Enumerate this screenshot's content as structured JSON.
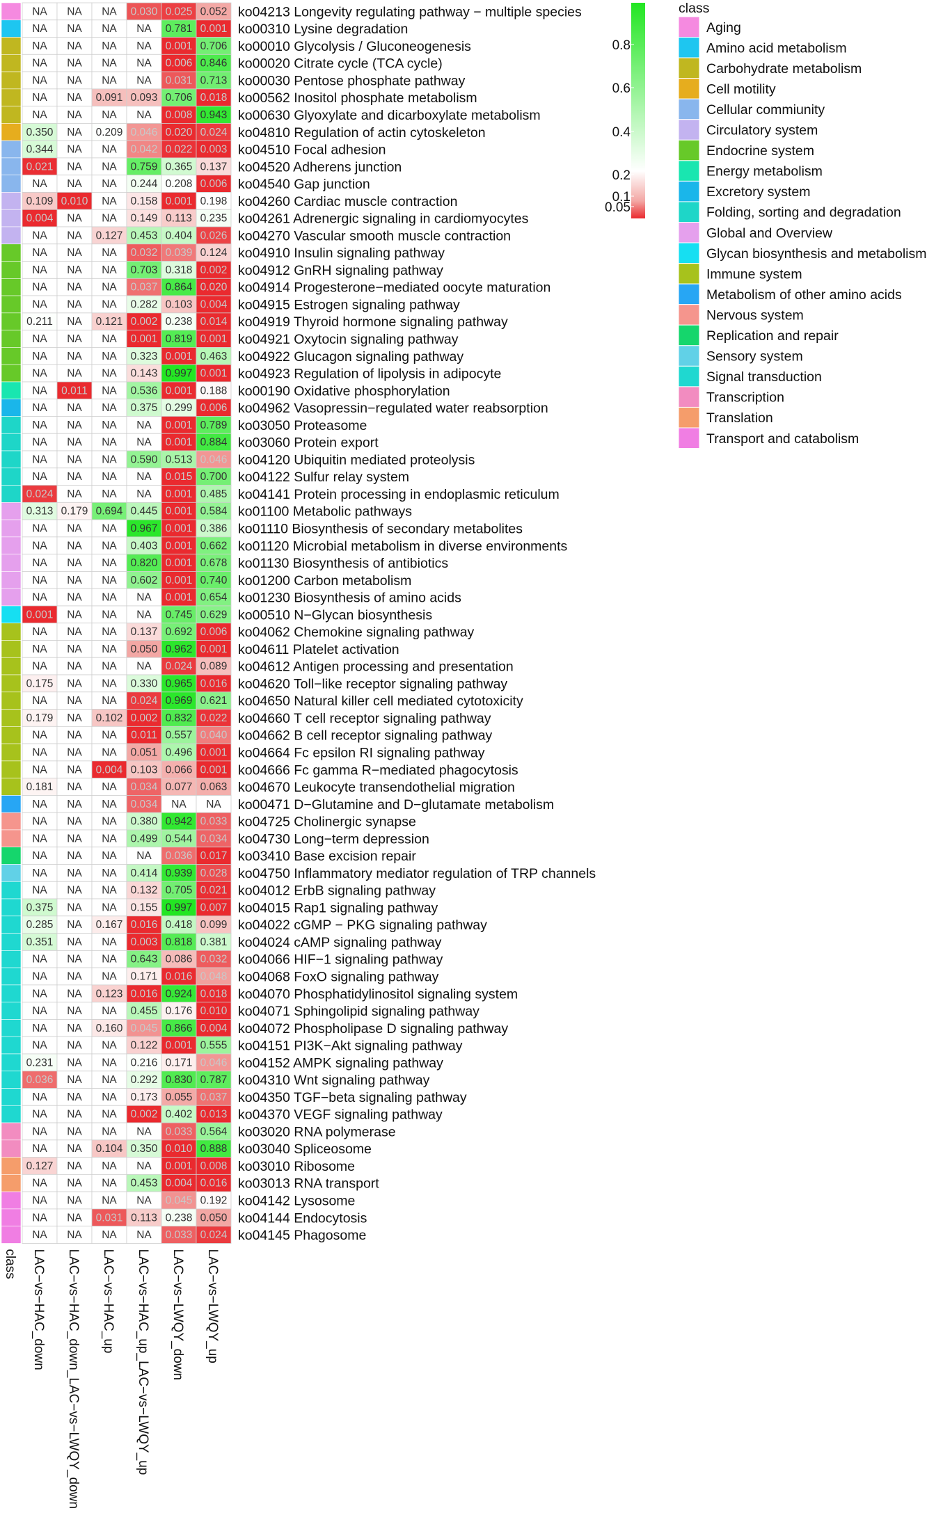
{
  "chart_data": {
    "type": "heatmap",
    "columns": [
      "LAC−vs−HAC_down",
      "LAC−vs−HAC_down_LAC−vs−LWQY_down",
      "LAC−vs−HAC_up",
      "LAC−vs−HAC_up_LAC−vs−LWQY_up",
      "LAC−vs−LWQY_down",
      "LAC−vs−LWQY_up"
    ],
    "class_axis_label": "class",
    "legend_title": "class",
    "colorbar": {
      "ticks": [
        "0.8",
        "0.6",
        "0.4",
        "0.2",
        "0.1",
        "0.05"
      ],
      "low_color": "#e8242a",
      "high_color": "#22e622"
    },
    "classes": [
      {
        "name": "Aging",
        "color": "#f58ae0"
      },
      {
        "name": "Amino acid metabolism",
        "color": "#1ec6f0"
      },
      {
        "name": "Carbohydrate metabolism",
        "color": "#c0b720"
      },
      {
        "name": "Cell motility",
        "color": "#e6ad1e"
      },
      {
        "name": "Cellular commiunity",
        "color": "#89b6ed"
      },
      {
        "name": "Circulatory system",
        "color": "#c3b3f0"
      },
      {
        "name": "Endocrine system",
        "color": "#67c929"
      },
      {
        "name": "Energy metabolism",
        "color": "#19e6b0"
      },
      {
        "name": "Excretory system",
        "color": "#1ab6ea"
      },
      {
        "name": "Folding, sorting and degradation",
        "color": "#1ed6c8"
      },
      {
        "name": "Global and Overview",
        "color": "#e5a0ed"
      },
      {
        "name": "Glycan biosynthesis and metabolism",
        "color": "#16dff2"
      },
      {
        "name": "Immune system",
        "color": "#a7c21c"
      },
      {
        "name": "Metabolism of other amino acids",
        "color": "#27a6f4"
      },
      {
        "name": "Nervous system",
        "color": "#f5958d"
      },
      {
        "name": "Replication and repair",
        "color": "#15d66c"
      },
      {
        "name": "Sensory system",
        "color": "#61d1e7"
      },
      {
        "name": "Signal transduction",
        "color": "#1fd8d0"
      },
      {
        "name": "Transcription",
        "color": "#f28cc0"
      },
      {
        "name": "Translation",
        "color": "#f59d6b"
      },
      {
        "name": "Transport and catabolism",
        "color": "#f07ee3"
      }
    ],
    "rows": [
      {
        "label": "ko04213 Longevity regulating pathway − multiple species",
        "class": 0,
        "values": [
          "NA",
          "NA",
          "NA",
          "0.030",
          "0.025",
          "0.052"
        ]
      },
      {
        "label": "ko00310 Lysine degradation",
        "class": 1,
        "values": [
          "NA",
          "NA",
          "NA",
          "NA",
          "0.781",
          "0.001"
        ]
      },
      {
        "label": "ko00010 Glycolysis / Gluconeogenesis",
        "class": 2,
        "values": [
          "NA",
          "NA",
          "NA",
          "NA",
          "0.001",
          "0.706"
        ]
      },
      {
        "label": "ko00020 Citrate cycle (TCA cycle)",
        "class": 2,
        "values": [
          "NA",
          "NA",
          "NA",
          "NA",
          "0.006",
          "0.846"
        ]
      },
      {
        "label": "ko00030 Pentose phosphate pathway",
        "class": 2,
        "values": [
          "NA",
          "NA",
          "NA",
          "NA",
          "0.031",
          "0.713"
        ]
      },
      {
        "label": "ko00562 Inositol phosphate metabolism",
        "class": 2,
        "values": [
          "NA",
          "NA",
          "0.091",
          "0.093",
          "0.706",
          "0.018"
        ]
      },
      {
        "label": "ko00630 Glyoxylate and dicarboxylate metabolism",
        "class": 2,
        "values": [
          "NA",
          "NA",
          "NA",
          "NA",
          "0.008",
          "0.943"
        ]
      },
      {
        "label": "ko04810 Regulation of actin cytoskeleton",
        "class": 3,
        "values": [
          "0.350",
          "NA",
          "0.209",
          "0.046",
          "0.020",
          "0.024"
        ]
      },
      {
        "label": "ko04510 Focal adhesion",
        "class": 4,
        "values": [
          "0.344",
          "NA",
          "NA",
          "0.042",
          "0.022",
          "0.003"
        ]
      },
      {
        "label": "ko04520 Adherens junction",
        "class": 4,
        "values": [
          "0.021",
          "NA",
          "NA",
          "0.759",
          "0.365",
          "0.137"
        ]
      },
      {
        "label": "ko04540 Gap junction",
        "class": 4,
        "values": [
          "NA",
          "NA",
          "NA",
          "0.244",
          "0.208",
          "0.006"
        ]
      },
      {
        "label": "ko04260 Cardiac muscle contraction",
        "class": 5,
        "values": [
          "0.109",
          "0.010",
          "NA",
          "0.158",
          "0.001",
          "0.198"
        ]
      },
      {
        "label": "ko04261 Adrenergic signaling in cardiomyocytes",
        "class": 5,
        "values": [
          "0.004",
          "NA",
          "NA",
          "0.149",
          "0.113",
          "0.235"
        ]
      },
      {
        "label": "ko04270 Vascular smooth muscle contraction",
        "class": 5,
        "values": [
          "NA",
          "NA",
          "0.127",
          "0.453",
          "0.404",
          "0.026"
        ]
      },
      {
        "label": "ko04910 Insulin signaling pathway",
        "class": 6,
        "values": [
          "NA",
          "NA",
          "NA",
          "0.032",
          "0.039",
          "0.124"
        ]
      },
      {
        "label": "ko04912 GnRH signaling pathway",
        "class": 6,
        "values": [
          "NA",
          "NA",
          "NA",
          "0.703",
          "0.318",
          "0.002"
        ]
      },
      {
        "label": "ko04914 Progesterone−mediated oocyte maturation",
        "class": 6,
        "values": [
          "NA",
          "NA",
          "NA",
          "0.037",
          "0.864",
          "0.020"
        ]
      },
      {
        "label": "ko04915 Estrogen signaling pathway",
        "class": 6,
        "values": [
          "NA",
          "NA",
          "NA",
          "0.282",
          "0.103",
          "0.004"
        ]
      },
      {
        "label": "ko04919 Thyroid hormone signaling pathway",
        "class": 6,
        "values": [
          "0.211",
          "NA",
          "0.121",
          "0.002",
          "0.238",
          "0.014"
        ]
      },
      {
        "label": "ko04921 Oxytocin signaling pathway",
        "class": 6,
        "values": [
          "NA",
          "NA",
          "NA",
          "0.001",
          "0.819",
          "0.001"
        ]
      },
      {
        "label": "ko04922 Glucagon signaling pathway",
        "class": 6,
        "values": [
          "NA",
          "NA",
          "NA",
          "0.323",
          "0.001",
          "0.463"
        ]
      },
      {
        "label": "ko04923 Regulation of lipolysis in adipocyte",
        "class": 6,
        "values": [
          "NA",
          "NA",
          "NA",
          "0.143",
          "0.997",
          "0.001"
        ]
      },
      {
        "label": "ko00190 Oxidative phosphorylation",
        "class": 7,
        "values": [
          "NA",
          "0.011",
          "NA",
          "0.536",
          "0.001",
          "0.188"
        ]
      },
      {
        "label": "ko04962 Vasopressin−regulated water reabsorption",
        "class": 8,
        "values": [
          "NA",
          "NA",
          "NA",
          "0.375",
          "0.299",
          "0.006"
        ]
      },
      {
        "label": "ko03050 Proteasome",
        "class": 9,
        "values": [
          "NA",
          "NA",
          "NA",
          "NA",
          "0.001",
          "0.789"
        ]
      },
      {
        "label": "ko03060 Protein export",
        "class": 9,
        "values": [
          "NA",
          "NA",
          "NA",
          "NA",
          "0.001",
          "0.884"
        ]
      },
      {
        "label": "ko04120 Ubiquitin mediated proteolysis",
        "class": 9,
        "values": [
          "NA",
          "NA",
          "NA",
          "0.590",
          "0.513",
          "0.046"
        ]
      },
      {
        "label": "ko04122 Sulfur relay system",
        "class": 9,
        "values": [
          "NA",
          "NA",
          "NA",
          "NA",
          "0.015",
          "0.700"
        ]
      },
      {
        "label": "ko04141 Protein processing in endoplasmic reticulum",
        "class": 9,
        "values": [
          "0.024",
          "NA",
          "NA",
          "NA",
          "0.001",
          "0.485"
        ]
      },
      {
        "label": "ko01100 Metabolic pathways",
        "class": 10,
        "values": [
          "0.313",
          "0.179",
          "0.694",
          "0.445",
          "0.001",
          "0.584"
        ]
      },
      {
        "label": "ko01110 Biosynthesis of secondary metabolites",
        "class": 10,
        "values": [
          "NA",
          "NA",
          "NA",
          "0.967",
          "0.001",
          "0.386"
        ]
      },
      {
        "label": "ko01120 Microbial metabolism in diverse environments",
        "class": 10,
        "values": [
          "NA",
          "NA",
          "NA",
          "0.403",
          "0.001",
          "0.662"
        ]
      },
      {
        "label": "ko01130 Biosynthesis of antibiotics",
        "class": 10,
        "values": [
          "NA",
          "NA",
          "NA",
          "0.820",
          "0.001",
          "0.678"
        ]
      },
      {
        "label": "ko01200 Carbon metabolism",
        "class": 10,
        "values": [
          "NA",
          "NA",
          "NA",
          "0.602",
          "0.001",
          "0.740"
        ]
      },
      {
        "label": "ko01230 Biosynthesis of amino acids",
        "class": 10,
        "values": [
          "NA",
          "NA",
          "NA",
          "NA",
          "0.001",
          "0.654"
        ]
      },
      {
        "label": "ko00510 N−Glycan biosynthesis",
        "class": 11,
        "values": [
          "0.001",
          "NA",
          "NA",
          "NA",
          "0.745",
          "0.629"
        ]
      },
      {
        "label": "ko04062 Chemokine signaling pathway",
        "class": 12,
        "values": [
          "NA",
          "NA",
          "NA",
          "0.137",
          "0.692",
          "0.006"
        ]
      },
      {
        "label": "ko04611 Platelet activation",
        "class": 12,
        "values": [
          "NA",
          "NA",
          "NA",
          "0.050",
          "0.962",
          "0.001"
        ]
      },
      {
        "label": "ko04612 Antigen processing and presentation",
        "class": 12,
        "values": [
          "NA",
          "NA",
          "NA",
          "NA",
          "0.024",
          "0.089"
        ]
      },
      {
        "label": "ko04620 Toll−like receptor signaling pathway",
        "class": 12,
        "values": [
          "0.175",
          "NA",
          "NA",
          "0.330",
          "0.965",
          "0.016"
        ]
      },
      {
        "label": "ko04650 Natural killer cell mediated cytotoxicity",
        "class": 12,
        "values": [
          "NA",
          "NA",
          "NA",
          "0.024",
          "0.969",
          "0.621"
        ]
      },
      {
        "label": "ko04660 T cell receptor signaling pathway",
        "class": 12,
        "values": [
          "0.179",
          "NA",
          "0.102",
          "0.002",
          "0.832",
          "0.022"
        ]
      },
      {
        "label": "ko04662 B cell receptor signaling pathway",
        "class": 12,
        "values": [
          "NA",
          "NA",
          "NA",
          "0.011",
          "0.557",
          "0.040"
        ]
      },
      {
        "label": "ko04664 Fc epsilon RI signaling pathway",
        "class": 12,
        "values": [
          "NA",
          "NA",
          "NA",
          "0.051",
          "0.496",
          "0.001"
        ]
      },
      {
        "label": "ko04666 Fc gamma R−mediated phagocytosis",
        "class": 12,
        "values": [
          "NA",
          "NA",
          "0.004",
          "0.103",
          "0.066",
          "0.001"
        ]
      },
      {
        "label": "ko04670 Leukocyte transendothelial migration",
        "class": 12,
        "values": [
          "0.181",
          "NA",
          "NA",
          "0.034",
          "0.077",
          "0.063"
        ]
      },
      {
        "label": "ko00471 D−Glutamine and D−glutamate metabolism",
        "class": 13,
        "values": [
          "NA",
          "NA",
          "NA",
          "0.034",
          "NA",
          "NA"
        ]
      },
      {
        "label": "ko04725 Cholinergic synapse",
        "class": 14,
        "values": [
          "NA",
          "NA",
          "NA",
          "0.380",
          "0.942",
          "0.033"
        ]
      },
      {
        "label": "ko04730 Long−term depression",
        "class": 14,
        "values": [
          "NA",
          "NA",
          "NA",
          "0.499",
          "0.544",
          "0.034"
        ]
      },
      {
        "label": "ko03410 Base excision repair",
        "class": 15,
        "values": [
          "NA",
          "NA",
          "NA",
          "NA",
          "0.036",
          "0.017"
        ]
      },
      {
        "label": "ko04750 Inflammatory mediator regulation of TRP channels",
        "class": 16,
        "values": [
          "NA",
          "NA",
          "NA",
          "0.414",
          "0.939",
          "0.028"
        ]
      },
      {
        "label": "ko04012 ErbB signaling pathway",
        "class": 17,
        "values": [
          "NA",
          "NA",
          "NA",
          "0.132",
          "0.705",
          "0.021"
        ]
      },
      {
        "label": "ko04015 Rap1 signaling pathway",
        "class": 17,
        "values": [
          "0.375",
          "NA",
          "NA",
          "0.155",
          "0.997",
          "0.007"
        ]
      },
      {
        "label": "ko04022 cGMP − PKG signaling pathway",
        "class": 17,
        "values": [
          "0.285",
          "NA",
          "0.167",
          "0.016",
          "0.418",
          "0.099"
        ]
      },
      {
        "label": "ko04024 cAMP signaling pathway",
        "class": 17,
        "values": [
          "0.351",
          "NA",
          "NA",
          "0.003",
          "0.818",
          "0.381"
        ]
      },
      {
        "label": "ko04066 HIF−1 signaling pathway",
        "class": 17,
        "values": [
          "NA",
          "NA",
          "NA",
          "0.643",
          "0.086",
          "0.032"
        ]
      },
      {
        "label": "ko04068 FoxO signaling pathway",
        "class": 17,
        "values": [
          "NA",
          "NA",
          "NA",
          "0.171",
          "0.016",
          "0.048"
        ]
      },
      {
        "label": "ko04070 Phosphatidylinositol signaling system",
        "class": 17,
        "values": [
          "NA",
          "NA",
          "0.123",
          "0.016",
          "0.924",
          "0.018"
        ]
      },
      {
        "label": "ko04071 Sphingolipid signaling pathway",
        "class": 17,
        "values": [
          "NA",
          "NA",
          "NA",
          "0.455",
          "0.176",
          "0.010"
        ]
      },
      {
        "label": "ko04072 Phospholipase D signaling pathway",
        "class": 17,
        "values": [
          "NA",
          "NA",
          "0.160",
          "0.045",
          "0.866",
          "0.004"
        ]
      },
      {
        "label": "ko04151 PI3K−Akt signaling pathway",
        "class": 17,
        "values": [
          "NA",
          "NA",
          "NA",
          "0.122",
          "0.001",
          "0.555"
        ]
      },
      {
        "label": "ko04152 AMPK signaling pathway",
        "class": 17,
        "values": [
          "0.231",
          "NA",
          "NA",
          "0.216",
          "0.171",
          "0.046"
        ]
      },
      {
        "label": "ko04310 Wnt signaling pathway",
        "class": 17,
        "values": [
          "0.036",
          "NA",
          "NA",
          "0.292",
          "0.830",
          "0.787"
        ]
      },
      {
        "label": "ko04350 TGF−beta signaling pathway",
        "class": 17,
        "values": [
          "NA",
          "NA",
          "NA",
          "0.173",
          "0.055",
          "0.037"
        ]
      },
      {
        "label": "ko04370 VEGF signaling pathway",
        "class": 17,
        "values": [
          "NA",
          "NA",
          "NA",
          "0.002",
          "0.402",
          "0.013"
        ]
      },
      {
        "label": "ko03020 RNA polymerase",
        "class": 18,
        "values": [
          "NA",
          "NA",
          "NA",
          "NA",
          "0.033",
          "0.564"
        ]
      },
      {
        "label": "ko03040 Spliceosome",
        "class": 18,
        "values": [
          "NA",
          "NA",
          "0.104",
          "0.350",
          "0.010",
          "0.888"
        ]
      },
      {
        "label": "ko03010 Ribosome",
        "class": 19,
        "values": [
          "0.127",
          "NA",
          "NA",
          "NA",
          "0.001",
          "0.008"
        ]
      },
      {
        "label": "ko03013 RNA transport",
        "class": 19,
        "values": [
          "NA",
          "NA",
          "NA",
          "0.453",
          "0.004",
          "0.016"
        ]
      },
      {
        "label": "ko04142 Lysosome",
        "class": 20,
        "values": [
          "NA",
          "NA",
          "NA",
          "NA",
          "0.045",
          "0.192"
        ]
      },
      {
        "label": "ko04144 Endocytosis",
        "class": 20,
        "values": [
          "NA",
          "NA",
          "0.031",
          "0.113",
          "0.238",
          "0.050"
        ]
      },
      {
        "label": "ko04145 Phagosome",
        "class": 20,
        "values": [
          "NA",
          "NA",
          "NA",
          "NA",
          "0.033",
          "0.024"
        ]
      }
    ]
  }
}
